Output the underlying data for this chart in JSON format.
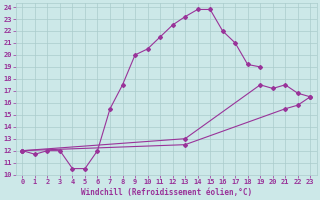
{
  "xlabel": "Windchill (Refroidissement éolien,°C)",
  "bg_color": "#cce8e8",
  "grid_color": "#aacccc",
  "line_color": "#993399",
  "xlim": [
    -0.5,
    23.5
  ],
  "ylim": [
    10,
    24.3
  ],
  "xticks": [
    0,
    1,
    2,
    3,
    4,
    5,
    6,
    7,
    8,
    9,
    10,
    11,
    12,
    13,
    14,
    15,
    16,
    17,
    18,
    19,
    20,
    21,
    22,
    23
  ],
  "yticks": [
    10,
    11,
    12,
    13,
    14,
    15,
    16,
    17,
    18,
    19,
    20,
    21,
    22,
    23,
    24
  ],
  "curve1_x": [
    0,
    1,
    2,
    3,
    4,
    5,
    6,
    7,
    8,
    9,
    10,
    11,
    12,
    13,
    14,
    15,
    16,
    17,
    18,
    19
  ],
  "curve1_y": [
    12.0,
    11.7,
    12.0,
    12.0,
    10.5,
    10.5,
    12.0,
    15.5,
    17.5,
    20.0,
    20.5,
    21.5,
    22.5,
    23.2,
    23.8,
    23.8,
    22.0,
    21.0,
    19.2,
    19.0
  ],
  "curve2_x": [
    0,
    13,
    19,
    20,
    21,
    22,
    23
  ],
  "curve2_y": [
    12.0,
    13.0,
    17.5,
    17.2,
    17.5,
    16.8,
    16.5
  ],
  "curve3_x": [
    0,
    13,
    21,
    22,
    23
  ],
  "curve3_y": [
    12.0,
    12.5,
    15.5,
    15.8,
    16.5
  ],
  "xlabel_fontsize": 5.5,
  "tick_fontsize": 5.0
}
